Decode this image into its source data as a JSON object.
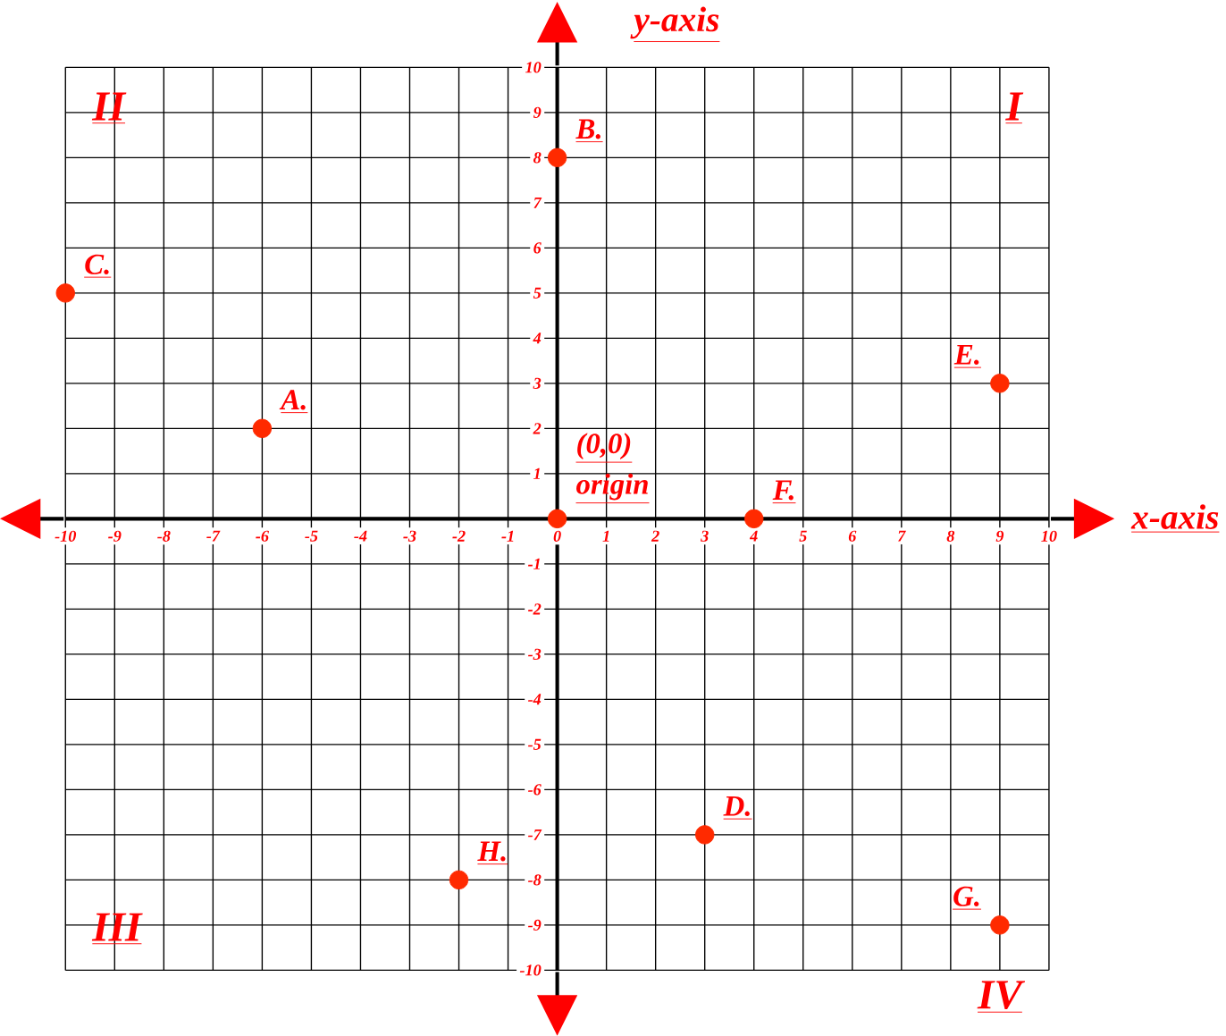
{
  "chart_data": {
    "type": "scatter",
    "xlabel": "x-axis",
    "ylabel": "y-axis",
    "x": [
      -6,
      0,
      -10,
      3,
      9,
      4,
      9,
      -2,
      0
    ],
    "values": [
      2,
      8,
      5,
      -7,
      3,
      0,
      -9,
      -8,
      0
    ],
    "color": "#ff2a00",
    "marker": "circle",
    "grid": true,
    "xlim": [
      -10,
      10
    ],
    "ylim": [
      -10,
      10
    ],
    "xticks": [
      -10,
      -9,
      -8,
      -7,
      -6,
      -5,
      -4,
      -3,
      -2,
      -1,
      0,
      1,
      2,
      3,
      4,
      5,
      6,
      7,
      8,
      9,
      10
    ],
    "yticks": [
      -10,
      -9,
      -8,
      -7,
      -6,
      -5,
      -4,
      -3,
      -2,
      -1,
      1,
      2,
      3,
      4,
      5,
      6,
      7,
      8,
      9,
      10
    ],
    "annotations": [
      {
        "text": "A.",
        "x": -6,
        "y": 2
      },
      {
        "text": "B.",
        "x": 0,
        "y": 8
      },
      {
        "text": "C.",
        "x": -10,
        "y": 5
      },
      {
        "text": "D.",
        "x": 3,
        "y": -7
      },
      {
        "text": "E.",
        "x": 9,
        "y": 3
      },
      {
        "text": "F.",
        "x": 4,
        "y": 0
      },
      {
        "text": "G.",
        "x": 9,
        "y": -9
      },
      {
        "text": "H.",
        "x": -2,
        "y": -8
      },
      {
        "text": "(0,0)",
        "x": 0,
        "y": 0
      },
      {
        "text": "origin",
        "x": 0,
        "y": 0
      },
      "I",
      "II",
      "III",
      "IV"
    ]
  }
}
